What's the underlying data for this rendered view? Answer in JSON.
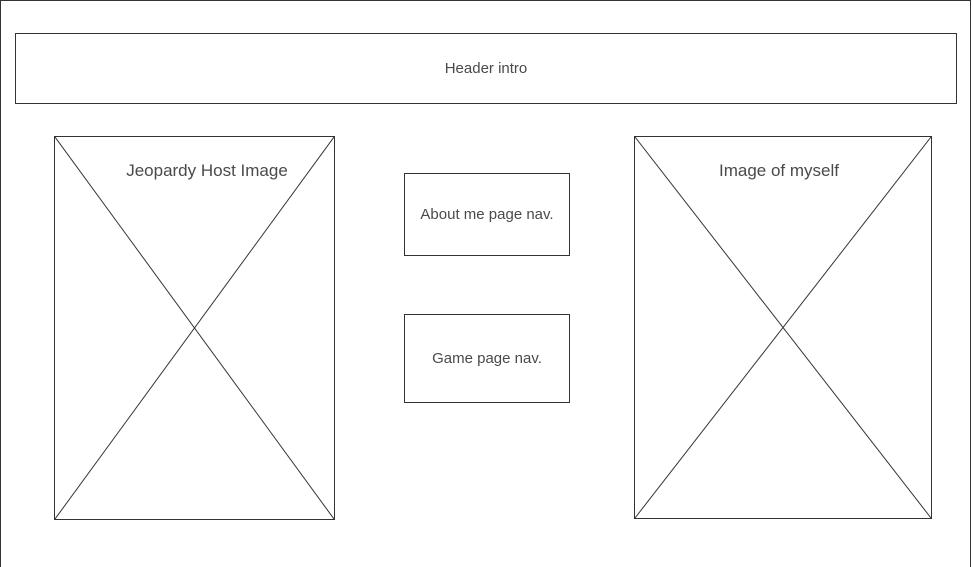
{
  "header": {
    "label": "Header intro"
  },
  "images": {
    "left": {
      "label": "Jeopardy Host Image",
      "icon": "image-placeholder-icon"
    },
    "right": {
      "label": "Image of myself",
      "icon": "image-placeholder-icon"
    }
  },
  "nav": {
    "about_label": "About me page nav.",
    "game_label": "Game page nav."
  },
  "colors": {
    "stroke": "#333333",
    "text": "#4a4a4a",
    "background": "#ffffff"
  }
}
